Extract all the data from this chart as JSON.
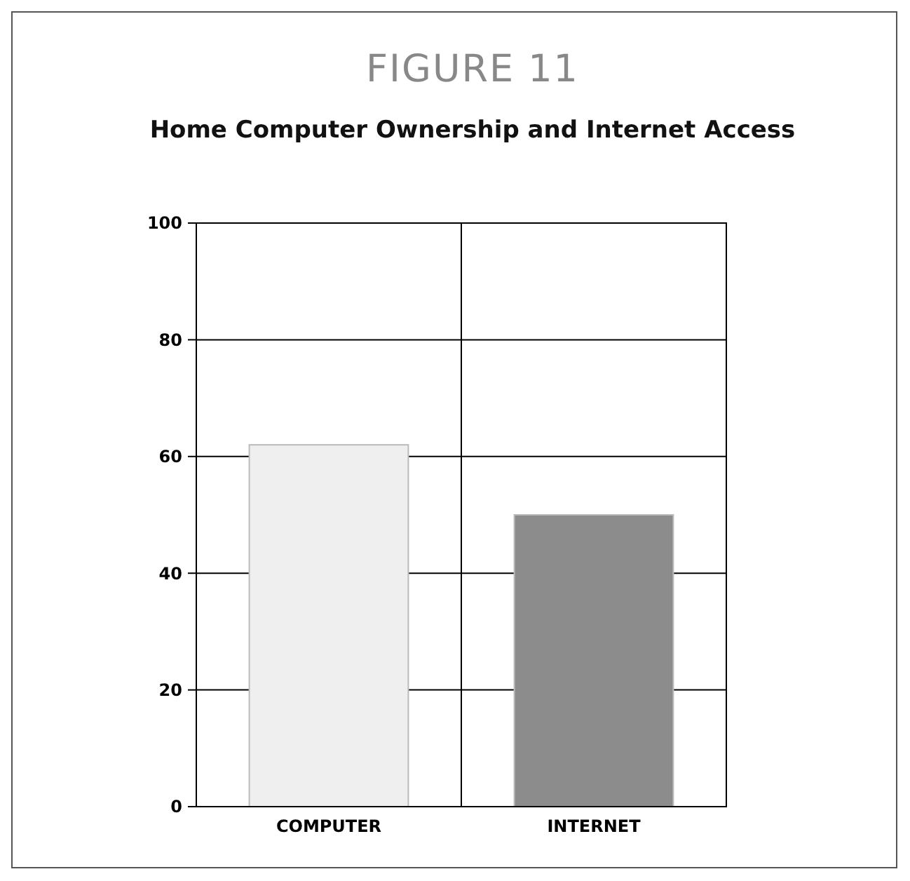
{
  "chart_data": {
    "type": "bar",
    "title": "FIGURE 11",
    "subtitle": "Home Computer Ownership and Internet Access",
    "categories": [
      "COMPUTER",
      "INTERNET"
    ],
    "values": [
      62,
      50
    ],
    "colors": [
      "#efefef",
      "#8c8c8c"
    ],
    "ylim": [
      0,
      100
    ],
    "yticks": [
      0,
      20,
      40,
      60,
      80,
      100
    ],
    "grid": true
  }
}
